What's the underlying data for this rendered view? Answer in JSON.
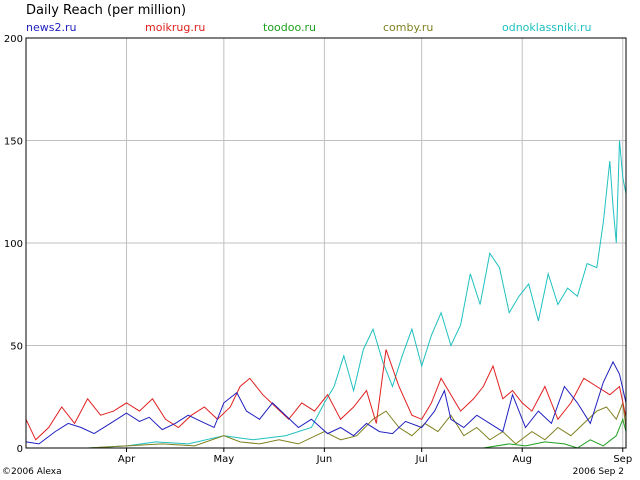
{
  "chart_data": {
    "type": "line",
    "title": "Daily Reach (per million)",
    "xlabel": "",
    "ylabel": "",
    "ylim": [
      0,
      200
    ],
    "yticks": [
      0,
      50,
      100,
      150,
      200
    ],
    "xlim": [
      "2006-03-01",
      "2006-09-02"
    ],
    "xticks": [
      {
        "label": "Apr",
        "date": "2006-04-01"
      },
      {
        "label": "May",
        "date": "2006-05-01"
      },
      {
        "label": "Jun",
        "date": "2006-06-01"
      },
      {
        "label": "Jul",
        "date": "2006-07-01"
      },
      {
        "label": "Aug",
        "date": "2006-08-01"
      },
      {
        "label": "Sep",
        "date": "2006-09-01"
      }
    ],
    "grid": true,
    "legend_placement": "top",
    "series": [
      {
        "name": "news2.ru",
        "color": "#2020c0",
        "points": [
          [
            "2006-03-01",
            3
          ],
          [
            "2006-03-05",
            2
          ],
          [
            "2006-03-10",
            8
          ],
          [
            "2006-03-14",
            12
          ],
          [
            "2006-03-18",
            10
          ],
          [
            "2006-03-22",
            7
          ],
          [
            "2006-03-27",
            12
          ],
          [
            "2006-04-01",
            17
          ],
          [
            "2006-04-05",
            13
          ],
          [
            "2006-04-08",
            15
          ],
          [
            "2006-04-12",
            9
          ],
          [
            "2006-04-16",
            12
          ],
          [
            "2006-04-20",
            16
          ],
          [
            "2006-04-24",
            13
          ],
          [
            "2006-04-28",
            10
          ],
          [
            "2006-05-01",
            22
          ],
          [
            "2006-05-05",
            27
          ],
          [
            "2006-05-08",
            18
          ],
          [
            "2006-05-12",
            14
          ],
          [
            "2006-05-16",
            22
          ],
          [
            "2006-05-20",
            16
          ],
          [
            "2006-05-24",
            10
          ],
          [
            "2006-05-28",
            14
          ],
          [
            "2006-06-02",
            7
          ],
          [
            "2006-06-06",
            10
          ],
          [
            "2006-06-10",
            6
          ],
          [
            "2006-06-14",
            12
          ],
          [
            "2006-06-18",
            8
          ],
          [
            "2006-06-22",
            7
          ],
          [
            "2006-06-26",
            13
          ],
          [
            "2006-07-01",
            10
          ],
          [
            "2006-07-05",
            18
          ],
          [
            "2006-07-08",
            28
          ],
          [
            "2006-07-10",
            14
          ],
          [
            "2006-07-14",
            10
          ],
          [
            "2006-07-18",
            16
          ],
          [
            "2006-07-22",
            12
          ],
          [
            "2006-07-26",
            8
          ],
          [
            "2006-07-29",
            26
          ],
          [
            "2006-08-02",
            10
          ],
          [
            "2006-08-06",
            18
          ],
          [
            "2006-08-10",
            12
          ],
          [
            "2006-08-14",
            30
          ],
          [
            "2006-08-18",
            22
          ],
          [
            "2006-08-22",
            12
          ],
          [
            "2006-08-26",
            32
          ],
          [
            "2006-08-29",
            42
          ],
          [
            "2006-08-31",
            36
          ],
          [
            "2006-09-02",
            22
          ]
        ]
      },
      {
        "name": "moikrug.ru",
        "color": "#e02020",
        "points": [
          [
            "2006-03-01",
            14
          ],
          [
            "2006-03-04",
            4
          ],
          [
            "2006-03-08",
            10
          ],
          [
            "2006-03-12",
            20
          ],
          [
            "2006-03-16",
            12
          ],
          [
            "2006-03-20",
            24
          ],
          [
            "2006-03-24",
            16
          ],
          [
            "2006-03-28",
            18
          ],
          [
            "2006-04-01",
            22
          ],
          [
            "2006-04-05",
            18
          ],
          [
            "2006-04-09",
            24
          ],
          [
            "2006-04-13",
            14
          ],
          [
            "2006-04-17",
            10
          ],
          [
            "2006-04-21",
            16
          ],
          [
            "2006-04-25",
            20
          ],
          [
            "2006-04-29",
            14
          ],
          [
            "2006-05-03",
            20
          ],
          [
            "2006-05-06",
            30
          ],
          [
            "2006-05-09",
            34
          ],
          [
            "2006-05-13",
            26
          ],
          [
            "2006-05-17",
            20
          ],
          [
            "2006-05-21",
            14
          ],
          [
            "2006-05-25",
            22
          ],
          [
            "2006-05-29",
            18
          ],
          [
            "2006-06-02",
            26
          ],
          [
            "2006-06-06",
            14
          ],
          [
            "2006-06-10",
            20
          ],
          [
            "2006-06-14",
            28
          ],
          [
            "2006-06-17",
            12
          ],
          [
            "2006-06-20",
            48
          ],
          [
            "2006-06-24",
            30
          ],
          [
            "2006-06-28",
            16
          ],
          [
            "2006-07-01",
            14
          ],
          [
            "2006-07-04",
            22
          ],
          [
            "2006-07-07",
            34
          ],
          [
            "2006-07-10",
            26
          ],
          [
            "2006-07-13",
            18
          ],
          [
            "2006-07-17",
            24
          ],
          [
            "2006-07-20",
            30
          ],
          [
            "2006-07-23",
            40
          ],
          [
            "2006-07-26",
            24
          ],
          [
            "2006-07-29",
            28
          ],
          [
            "2006-08-01",
            22
          ],
          [
            "2006-08-04",
            18
          ],
          [
            "2006-08-08",
            30
          ],
          [
            "2006-08-12",
            14
          ],
          [
            "2006-08-16",
            22
          ],
          [
            "2006-08-20",
            34
          ],
          [
            "2006-08-24",
            30
          ],
          [
            "2006-08-28",
            26
          ],
          [
            "2006-08-31",
            30
          ],
          [
            "2006-09-02",
            15
          ]
        ]
      },
      {
        "name": "toodoo.ru",
        "color": "#20a020",
        "points": [
          [
            "2006-03-01",
            0
          ],
          [
            "2006-04-01",
            0
          ],
          [
            "2006-05-01",
            0
          ],
          [
            "2006-06-01",
            0
          ],
          [
            "2006-07-01",
            0
          ],
          [
            "2006-07-20",
            0
          ],
          [
            "2006-07-28",
            2
          ],
          [
            "2006-08-02",
            1
          ],
          [
            "2006-08-08",
            3
          ],
          [
            "2006-08-14",
            2
          ],
          [
            "2006-08-18",
            0
          ],
          [
            "2006-08-22",
            4
          ],
          [
            "2006-08-26",
            1
          ],
          [
            "2006-08-30",
            6
          ],
          [
            "2006-09-01",
            14
          ],
          [
            "2006-09-02",
            8
          ]
        ]
      },
      {
        "name": "comby.ru",
        "color": "#808020",
        "points": [
          [
            "2006-03-01",
            0
          ],
          [
            "2006-03-20",
            0
          ],
          [
            "2006-04-01",
            1
          ],
          [
            "2006-04-12",
            2
          ],
          [
            "2006-04-22",
            1
          ],
          [
            "2006-05-01",
            6
          ],
          [
            "2006-05-06",
            3
          ],
          [
            "2006-05-12",
            2
          ],
          [
            "2006-05-18",
            4
          ],
          [
            "2006-05-24",
            2
          ],
          [
            "2006-06-01",
            8
          ],
          [
            "2006-06-06",
            4
          ],
          [
            "2006-06-11",
            6
          ],
          [
            "2006-06-16",
            14
          ],
          [
            "2006-06-20",
            18
          ],
          [
            "2006-06-24",
            10
          ],
          [
            "2006-06-28",
            6
          ],
          [
            "2006-07-02",
            12
          ],
          [
            "2006-07-06",
            8
          ],
          [
            "2006-07-10",
            16
          ],
          [
            "2006-07-14",
            6
          ],
          [
            "2006-07-18",
            10
          ],
          [
            "2006-07-22",
            4
          ],
          [
            "2006-07-26",
            8
          ],
          [
            "2006-07-30",
            2
          ],
          [
            "2006-08-04",
            8
          ],
          [
            "2006-08-08",
            4
          ],
          [
            "2006-08-12",
            10
          ],
          [
            "2006-08-16",
            6
          ],
          [
            "2006-08-20",
            12
          ],
          [
            "2006-08-24",
            18
          ],
          [
            "2006-08-27",
            20
          ],
          [
            "2006-08-30",
            14
          ],
          [
            "2006-09-01",
            22
          ],
          [
            "2006-09-02",
            10
          ]
        ]
      },
      {
        "name": "odnoklassniki.ru",
        "color": "#20c0c0",
        "points": [
          [
            "2006-03-01",
            0
          ],
          [
            "2006-03-20",
            0
          ],
          [
            "2006-04-01",
            1
          ],
          [
            "2006-04-10",
            3
          ],
          [
            "2006-04-20",
            2
          ],
          [
            "2006-05-01",
            6
          ],
          [
            "2006-05-10",
            4
          ],
          [
            "2006-05-20",
            6
          ],
          [
            "2006-05-28",
            10
          ],
          [
            "2006-06-01",
            22
          ],
          [
            "2006-06-04",
            30
          ],
          [
            "2006-06-07",
            45
          ],
          [
            "2006-06-10",
            28
          ],
          [
            "2006-06-13",
            48
          ],
          [
            "2006-06-16",
            58
          ],
          [
            "2006-06-19",
            42
          ],
          [
            "2006-06-22",
            30
          ],
          [
            "2006-06-25",
            45
          ],
          [
            "2006-06-28",
            58
          ],
          [
            "2006-07-01",
            40
          ],
          [
            "2006-07-04",
            55
          ],
          [
            "2006-07-07",
            66
          ],
          [
            "2006-07-10",
            50
          ],
          [
            "2006-07-13",
            60
          ],
          [
            "2006-07-16",
            85
          ],
          [
            "2006-07-19",
            70
          ],
          [
            "2006-07-22",
            95
          ],
          [
            "2006-07-25",
            88
          ],
          [
            "2006-07-28",
            66
          ],
          [
            "2006-07-31",
            74
          ],
          [
            "2006-08-03",
            80
          ],
          [
            "2006-08-06",
            62
          ],
          [
            "2006-08-09",
            85
          ],
          [
            "2006-08-12",
            70
          ],
          [
            "2006-08-15",
            78
          ],
          [
            "2006-08-18",
            74
          ],
          [
            "2006-08-21",
            90
          ],
          [
            "2006-08-24",
            88
          ],
          [
            "2006-08-26",
            110
          ],
          [
            "2006-08-28",
            140
          ],
          [
            "2006-08-29",
            118
          ],
          [
            "2006-08-30",
            100
          ],
          [
            "2006-08-31",
            150
          ],
          [
            "2006-09-01",
            132
          ],
          [
            "2006-09-02",
            124
          ]
        ]
      }
    ]
  },
  "footer": {
    "copyright": "©2006 Alexa",
    "date": "2006 Sep 2"
  }
}
